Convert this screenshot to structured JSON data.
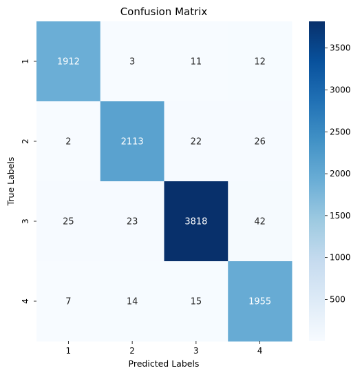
{
  "chart_data": {
    "type": "heatmap",
    "title": "Confusion Matrix",
    "xlabel": "Predicted Labels",
    "ylabel": "True Labels",
    "x_categories": [
      "1",
      "2",
      "3",
      "4"
    ],
    "y_categories": [
      "1",
      "2",
      "3",
      "4"
    ],
    "values": [
      [
        1912,
        3,
        11,
        12
      ],
      [
        2,
        2113,
        22,
        26
      ],
      [
        25,
        23,
        3818,
        42
      ],
      [
        7,
        14,
        15,
        1955
      ]
    ],
    "colormap": "Blues",
    "colorbar": {
      "min": 2,
      "max": 3818,
      "ticks": [
        500,
        1000,
        1500,
        2000,
        2500,
        3000,
        3500
      ]
    }
  }
}
